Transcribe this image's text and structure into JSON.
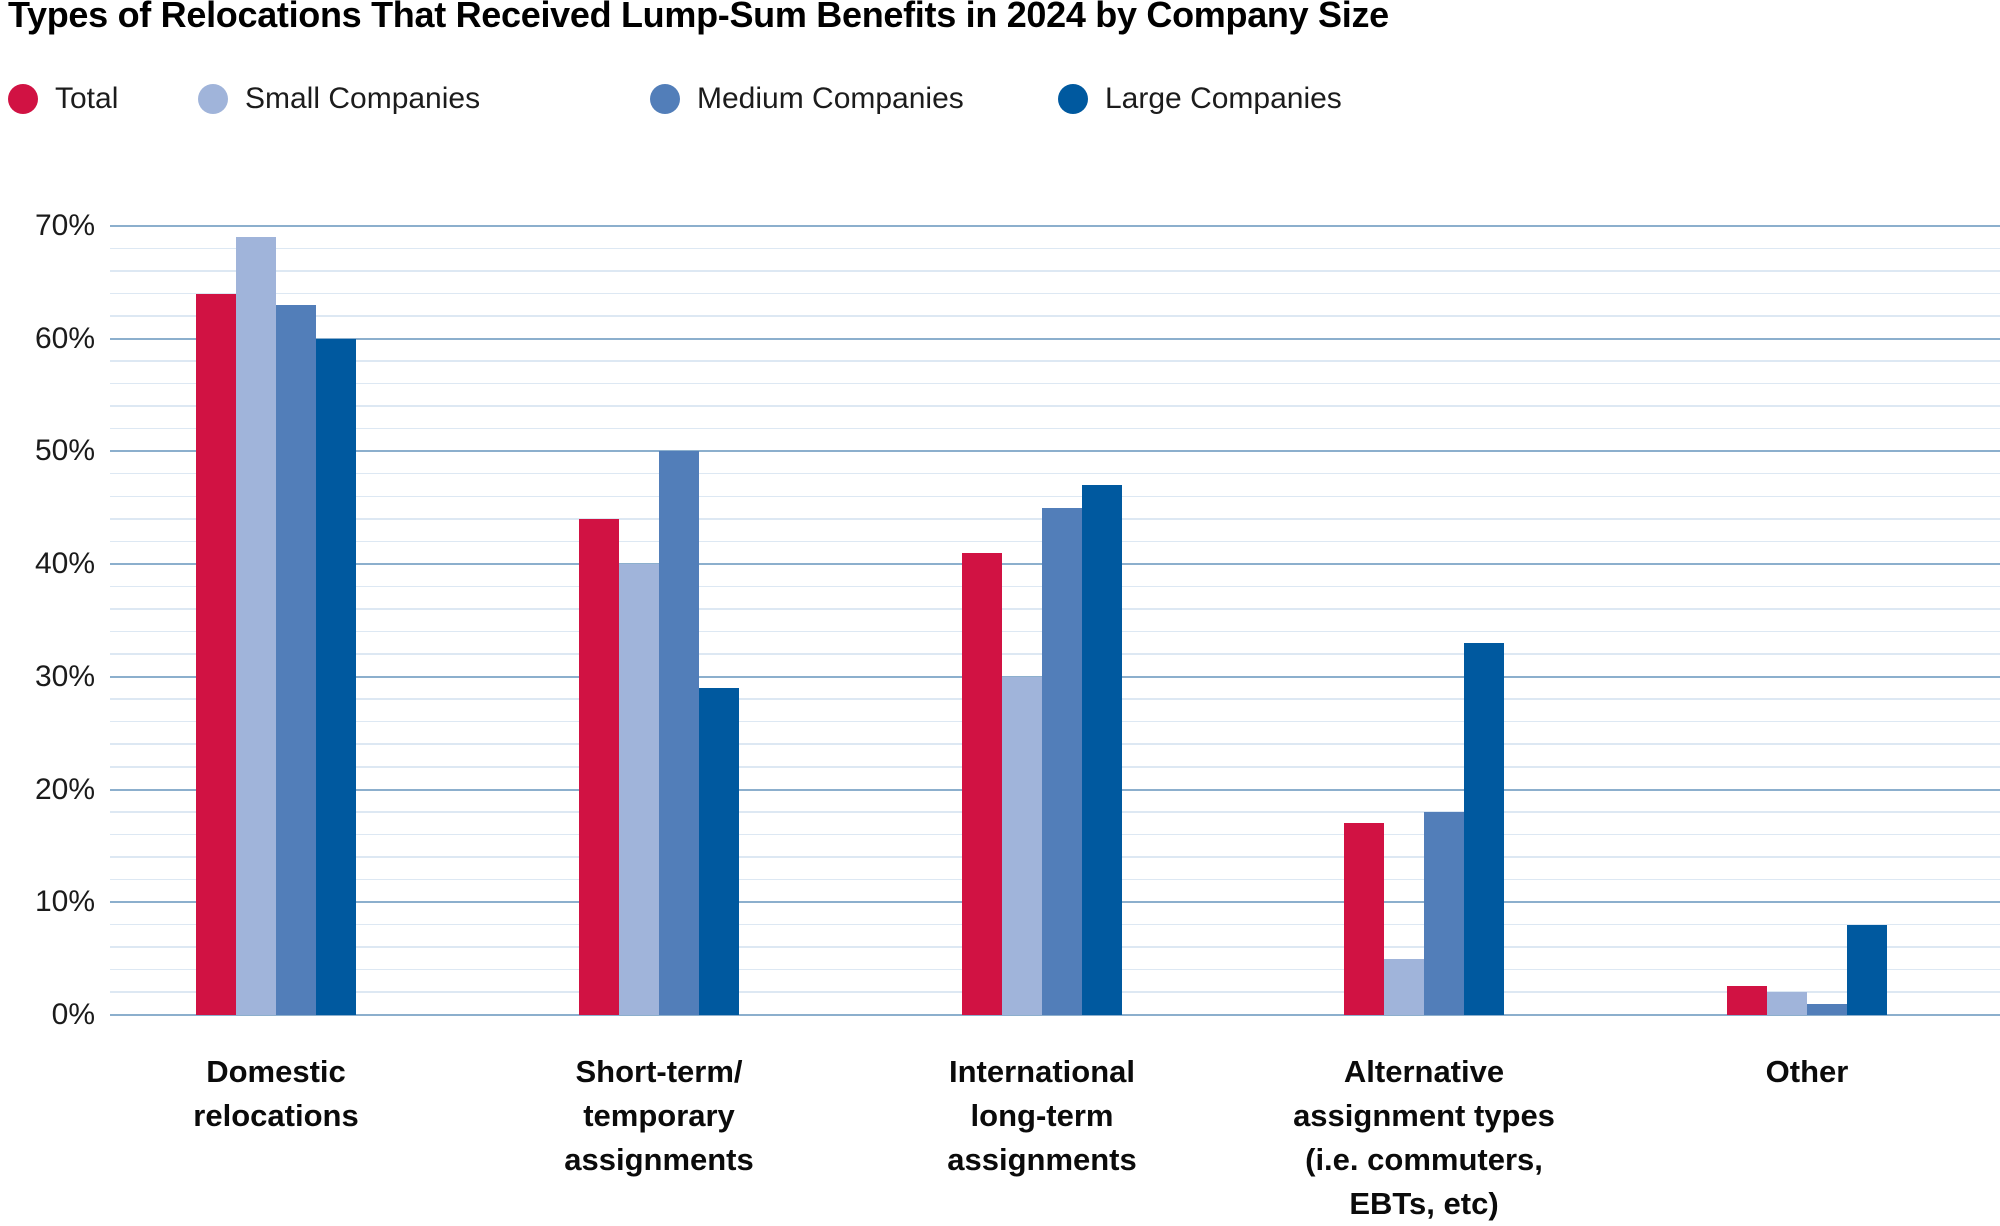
{
  "title": "Types of Relocations That Received Lump-Sum Benefits in 2024 by Company Size",
  "legend": [
    {
      "label": "Total",
      "color": "#d11243"
    },
    {
      "label": "Small Companies",
      "color": "#a0b4da"
    },
    {
      "label": "Medium Companies",
      "color": "#527eb9"
    },
    {
      "label": "Large Companies",
      "color": "#00599f"
    }
  ],
  "chart_data": {
    "type": "bar",
    "title": "Types of Relocations That Received Lump-Sum Benefits in 2024 by Company Size",
    "categories": [
      "Domestic\nrelocations",
      "Short-term/\ntemporary\nassignments",
      "International\nlong-term\nassignments",
      "Alternative\nassignment types\n(i.e. commuters,\nEBTs, etc)",
      "Other"
    ],
    "series": [
      {
        "name": "Total",
        "color": "#d11243",
        "values": [
          64,
          44,
          41,
          17,
          2.6
        ]
      },
      {
        "name": "Small Companies",
        "color": "#a0b4da",
        "values": [
          69,
          40,
          30,
          5,
          2
        ]
      },
      {
        "name": "Medium Companies",
        "color": "#527eb9",
        "values": [
          63,
          50,
          45,
          18,
          1
        ]
      },
      {
        "name": "Large Companies",
        "color": "#00599f",
        "values": [
          60,
          29,
          47,
          33,
          8
        ]
      }
    ],
    "ylim": [
      0,
      70
    ],
    "ytick_major_step": 10,
    "ytick_minor_step": 2,
    "yticklabels": [
      "0%",
      "10%",
      "20%",
      "30%",
      "40%",
      "50%",
      "60%",
      "70%"
    ],
    "grid": true,
    "legend_position": "top-left",
    "grid_major_color": "#8cafcd",
    "grid_minor_color": "#dde8f3"
  }
}
